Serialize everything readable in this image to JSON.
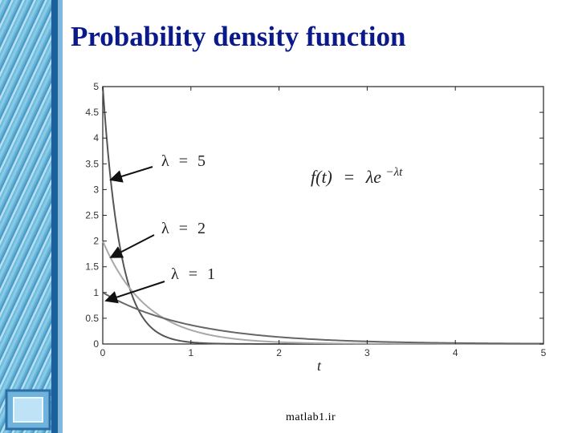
{
  "slide": {
    "title": "Probability density function",
    "footer": "matlab1.ir"
  },
  "chart_data": {
    "type": "line",
    "title": "",
    "xlabel": "t",
    "ylabel": "",
    "xlim": [
      0,
      5
    ],
    "ylim": [
      0,
      5
    ],
    "x_ticks": [
      "0",
      "1",
      "2",
      "3",
      "4",
      "5"
    ],
    "y_ticks": [
      "0",
      "0.5",
      "1",
      "1.5",
      "2",
      "2.5",
      "3",
      "3.5",
      "4",
      "4.5",
      "5"
    ],
    "grid": false,
    "formula": {
      "lhs": "f(t)",
      "eq": "=",
      "rhs": "λe",
      "exp": "−λt"
    },
    "series": [
      {
        "name": "λ = 5",
        "lambda": 5,
        "color": "#555555",
        "label_symbol": "λ",
        "label_eq": "=",
        "label_value": "5"
      },
      {
        "name": "λ = 2",
        "lambda": 2,
        "color": "#a8a8a8",
        "label_symbol": "λ",
        "label_eq": "=",
        "label_value": "2"
      },
      {
        "name": "λ = 1",
        "lambda": 1,
        "color": "#666666",
        "label_symbol": "λ",
        "label_eq": "=",
        "label_value": "1"
      }
    ]
  }
}
